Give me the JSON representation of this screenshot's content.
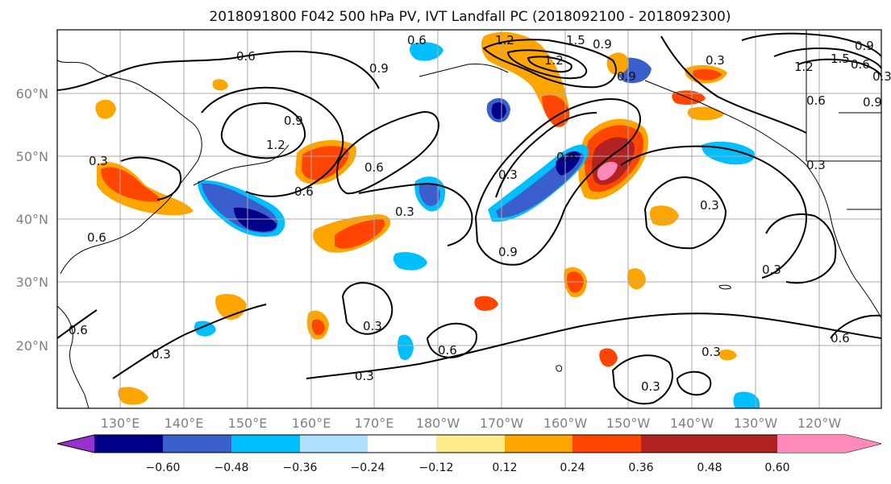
{
  "title": "2018091800 F042 500 hPa PV, IVT Landfall PC (2018092100 - 2018092300)",
  "lat_labels": [
    "60°N",
    "50°N",
    "40°N",
    "30°N",
    "20°N"
  ],
  "lon_labels": [
    "130°E",
    "140°E",
    "150°E",
    "160°E",
    "170°E",
    "180°W",
    "170°W",
    "160°W",
    "150°W",
    "140°W",
    "130°W",
    "120°W"
  ],
  "colorbar": {
    "colors": [
      "#9b30d0",
      "#00008b",
      "#3a5fcd",
      "#00bfff",
      "#b0e2ff",
      "#ffffff",
      "#ffec8b",
      "#ffa500",
      "#ff4500",
      "#b22222",
      "#ff89b8"
    ],
    "tick_labels": [
      "−0.60",
      "−0.48",
      "−0.36",
      "−0.24",
      "−0.12",
      "0.12",
      "0.24",
      "0.36",
      "0.48",
      "0.60"
    ]
  },
  "contour_labels": [
    "0.6",
    "0.6",
    "0.9",
    "1.2",
    "0.9",
    "0.6",
    "0.3",
    "0.9",
    "1.2",
    "0.9",
    "0.6",
    "0.3",
    "0.3",
    "0.9",
    "0.3",
    "0.3",
    "0.9",
    "1.2",
    "1.5",
    "0.3",
    "0.6",
    "0.9",
    "0.3",
    "0.6",
    "0.3",
    "0.3",
    "0.3",
    "0.6",
    "0.6",
    "0.3",
    "0.6",
    "0.3",
    "1.2",
    "1.5",
    "0.6",
    "0.9",
    "0.3"
  ]
}
